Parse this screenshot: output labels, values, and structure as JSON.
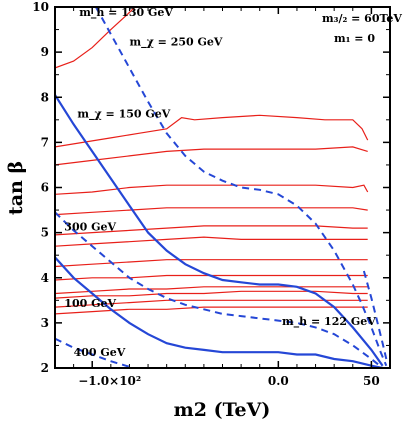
{
  "chart_data": {
    "type": "line",
    "xlabel": "m2 (TeV)",
    "ylabel": "tan β",
    "xlim": [
      -120,
      60
    ],
    "ylim": [
      2,
      10
    ],
    "x_ticks": [
      {
        "value": -100,
        "label": "−1.0×10²"
      },
      {
        "value": 0,
        "label": "0.0"
      },
      {
        "value": 50,
        "label": "50"
      }
    ],
    "y_ticks": [
      {
        "value": 2,
        "label": "2"
      },
      {
        "value": 3,
        "label": "3"
      },
      {
        "value": 4,
        "label": "4"
      },
      {
        "value": 5,
        "label": "5"
      },
      {
        "value": 6,
        "label": "6"
      },
      {
        "value": 7,
        "label": "7"
      },
      {
        "value": 8,
        "label": "8"
      },
      {
        "value": 9,
        "label": "9"
      },
      {
        "value": 10,
        "label": "10"
      }
    ],
    "legend_text": {
      "m32": "m₃/₂ = 60TeV",
      "m1": "m₁ = 0"
    },
    "annotations": [
      {
        "label": "m_h = 130 GeV",
        "x": -107,
        "y": 9.8
      },
      {
        "label": "m_χ = 250 GeV",
        "x": -80,
        "y": 9.15
      },
      {
        "label": "m_χ = 150 GeV",
        "x": -108,
        "y": 7.55
      },
      {
        "label": "300 GeV",
        "x": -115,
        "y": 5.05
      },
      {
        "label": "100 GeV",
        "x": -115,
        "y": 3.35
      },
      {
        "label": "m_h = 122 GeV",
        "x": 2,
        "y": 2.95
      },
      {
        "label": "400 GeV",
        "x": -110,
        "y": 2.27
      }
    ],
    "series": [
      {
        "style": "red-solid",
        "points": [
          [
            -120,
            8.65
          ],
          [
            -110,
            8.8
          ],
          [
            -100,
            9.1
          ],
          [
            -90,
            9.5
          ],
          [
            -82,
            9.8
          ],
          [
            -77,
            10
          ]
        ]
      },
      {
        "style": "red-solid",
        "points": [
          [
            -120,
            6.9
          ],
          [
            -105,
            7.0
          ],
          [
            -90,
            7.1
          ],
          [
            -75,
            7.2
          ],
          [
            -60,
            7.3
          ],
          [
            -52,
            7.55
          ],
          [
            -45,
            7.5
          ],
          [
            -30,
            7.55
          ],
          [
            -10,
            7.6
          ],
          [
            10,
            7.55
          ],
          [
            25,
            7.5
          ],
          [
            40,
            7.5
          ],
          [
            45,
            7.3
          ],
          [
            48,
            7.05
          ]
        ]
      },
      {
        "style": "red-solid",
        "points": [
          [
            -120,
            6.5
          ],
          [
            -100,
            6.6
          ],
          [
            -80,
            6.7
          ],
          [
            -60,
            6.8
          ],
          [
            -40,
            6.85
          ],
          [
            -20,
            6.85
          ],
          [
            0,
            6.85
          ],
          [
            20,
            6.85
          ],
          [
            40,
            6.9
          ],
          [
            48,
            6.8
          ]
        ]
      },
      {
        "style": "red-solid",
        "points": [
          [
            -120,
            5.85
          ],
          [
            -100,
            5.9
          ],
          [
            -80,
            6.0
          ],
          [
            -60,
            6.05
          ],
          [
            -40,
            6.05
          ],
          [
            -20,
            6.05
          ],
          [
            0,
            6.05
          ],
          [
            20,
            6.05
          ],
          [
            40,
            6.0
          ],
          [
            46,
            6.05
          ],
          [
            48,
            5.9
          ]
        ]
      },
      {
        "style": "red-solid",
        "points": [
          [
            -120,
            5.4
          ],
          [
            -100,
            5.45
          ],
          [
            -80,
            5.5
          ],
          [
            -60,
            5.55
          ],
          [
            -40,
            5.55
          ],
          [
            -20,
            5.55
          ],
          [
            0,
            5.55
          ],
          [
            20,
            5.55
          ],
          [
            40,
            5.55
          ],
          [
            48,
            5.5
          ]
        ]
      },
      {
        "style": "red-solid",
        "points": [
          [
            -120,
            4.95
          ],
          [
            -100,
            5.0
          ],
          [
            -80,
            5.05
          ],
          [
            -60,
            5.1
          ],
          [
            -40,
            5.15
          ],
          [
            -20,
            5.15
          ],
          [
            0,
            5.15
          ],
          [
            20,
            5.15
          ],
          [
            40,
            5.1
          ],
          [
            48,
            5.1
          ]
        ]
      },
      {
        "style": "red-solid",
        "points": [
          [
            -120,
            4.7
          ],
          [
            -100,
            4.75
          ],
          [
            -80,
            4.8
          ],
          [
            -60,
            4.85
          ],
          [
            -40,
            4.9
          ],
          [
            -20,
            4.85
          ],
          [
            0,
            4.85
          ],
          [
            20,
            4.85
          ],
          [
            40,
            4.85
          ],
          [
            48,
            4.85
          ]
        ]
      },
      {
        "style": "red-solid",
        "points": [
          [
            -120,
            4.25
          ],
          [
            -100,
            4.3
          ],
          [
            -80,
            4.35
          ],
          [
            -60,
            4.4
          ],
          [
            -40,
            4.4
          ],
          [
            -20,
            4.4
          ],
          [
            0,
            4.4
          ],
          [
            20,
            4.4
          ],
          [
            40,
            4.4
          ],
          [
            48,
            4.4
          ]
        ]
      },
      {
        "style": "red-solid",
        "points": [
          [
            -120,
            3.95
          ],
          [
            -100,
            4.0
          ],
          [
            -80,
            4.0
          ],
          [
            -60,
            4.05
          ],
          [
            -40,
            4.05
          ],
          [
            -20,
            4.05
          ],
          [
            0,
            4.05
          ],
          [
            20,
            4.05
          ],
          [
            40,
            4.05
          ],
          [
            48,
            4.05
          ]
        ]
      },
      {
        "style": "red-solid",
        "points": [
          [
            -120,
            3.65
          ],
          [
            -100,
            3.7
          ],
          [
            -80,
            3.75
          ],
          [
            -60,
            3.75
          ],
          [
            -40,
            3.8
          ],
          [
            -20,
            3.8
          ],
          [
            0,
            3.8
          ],
          [
            20,
            3.8
          ],
          [
            40,
            3.8
          ],
          [
            48,
            3.8
          ]
        ]
      },
      {
        "style": "red-solid",
        "points": [
          [
            -120,
            3.55
          ],
          [
            -100,
            3.6
          ],
          [
            -80,
            3.6
          ],
          [
            -60,
            3.65
          ],
          [
            -40,
            3.65
          ],
          [
            -20,
            3.7
          ],
          [
            0,
            3.7
          ],
          [
            20,
            3.7
          ],
          [
            40,
            3.65
          ],
          [
            48,
            3.65
          ]
        ]
      },
      {
        "style": "red-solid",
        "points": [
          [
            -120,
            3.35
          ],
          [
            -100,
            3.4
          ],
          [
            -80,
            3.45
          ],
          [
            -60,
            3.5
          ],
          [
            -40,
            3.5
          ],
          [
            -20,
            3.5
          ],
          [
            0,
            3.5
          ],
          [
            20,
            3.5
          ],
          [
            40,
            3.5
          ],
          [
            48,
            3.5
          ]
        ]
      },
      {
        "style": "red-solid",
        "points": [
          [
            -120,
            3.2
          ],
          [
            -100,
            3.25
          ],
          [
            -80,
            3.3
          ],
          [
            -60,
            3.3
          ],
          [
            -40,
            3.35
          ],
          [
            -20,
            3.35
          ],
          [
            0,
            3.35
          ],
          [
            20,
            3.35
          ],
          [
            40,
            3.35
          ],
          [
            48,
            3.35
          ]
        ]
      },
      {
        "style": "blue-solid",
        "points": [
          [
            -120,
            8.05
          ],
          [
            -110,
            7.4
          ],
          [
            -100,
            6.8
          ],
          [
            -90,
            6.2
          ],
          [
            -80,
            5.6
          ],
          [
            -70,
            5.0
          ],
          [
            -60,
            4.6
          ],
          [
            -50,
            4.3
          ],
          [
            -40,
            4.1
          ],
          [
            -30,
            3.95
          ],
          [
            -20,
            3.9
          ],
          [
            -10,
            3.85
          ],
          [
            0,
            3.85
          ],
          [
            10,
            3.8
          ],
          [
            20,
            3.65
          ],
          [
            30,
            3.35
          ],
          [
            40,
            2.9
          ],
          [
            50,
            2.4
          ],
          [
            56,
            2.05
          ]
        ]
      },
      {
        "style": "blue-solid",
        "points": [
          [
            -120,
            4.45
          ],
          [
            -110,
            4.0
          ],
          [
            -100,
            3.65
          ],
          [
            -90,
            3.3
          ],
          [
            -80,
            3.0
          ],
          [
            -70,
            2.75
          ],
          [
            -60,
            2.55
          ],
          [
            -50,
            2.45
          ],
          [
            -40,
            2.4
          ],
          [
            -30,
            2.35
          ],
          [
            -20,
            2.35
          ],
          [
            -10,
            2.35
          ],
          [
            0,
            2.35
          ],
          [
            10,
            2.3
          ],
          [
            20,
            2.3
          ],
          [
            30,
            2.2
          ],
          [
            40,
            2.15
          ],
          [
            50,
            2.05
          ],
          [
            56,
            2.0
          ]
        ]
      },
      {
        "style": "blue-dashed",
        "points": [
          [
            -98,
            10
          ],
          [
            -90,
            9.4
          ],
          [
            -80,
            8.65
          ],
          [
            -70,
            7.9
          ],
          [
            -60,
            7.2
          ],
          [
            -50,
            6.7
          ],
          [
            -40,
            6.35
          ],
          [
            -30,
            6.15
          ],
          [
            -20,
            6.0
          ],
          [
            -10,
            5.95
          ],
          [
            0,
            5.85
          ],
          [
            10,
            5.6
          ],
          [
            20,
            5.2
          ],
          [
            30,
            4.6
          ],
          [
            40,
            3.85
          ],
          [
            45,
            3.4
          ],
          [
            50,
            2.9
          ],
          [
            55,
            2.35
          ],
          [
            58,
            2.05
          ]
        ]
      },
      {
        "style": "blue-dashed",
        "points": [
          [
            -120,
            5.45
          ],
          [
            -110,
            5.05
          ],
          [
            -100,
            4.7
          ],
          [
            -90,
            4.35
          ],
          [
            -80,
            4.0
          ],
          [
            -70,
            3.75
          ],
          [
            -60,
            3.55
          ],
          [
            -50,
            3.4
          ],
          [
            -40,
            3.3
          ],
          [
            -30,
            3.2
          ],
          [
            -20,
            3.15
          ],
          [
            -10,
            3.1
          ],
          [
            0,
            3.05
          ],
          [
            10,
            3.0
          ],
          [
            20,
            2.9
          ],
          [
            30,
            2.75
          ],
          [
            40,
            2.5
          ],
          [
            50,
            2.2
          ],
          [
            56,
            2.0
          ]
        ]
      },
      {
        "style": "blue-dashed",
        "points": [
          [
            -120,
            2.65
          ],
          [
            -110,
            2.45
          ],
          [
            -100,
            2.3
          ],
          [
            -90,
            2.15
          ],
          [
            -82,
            2.05
          ],
          [
            -78,
            2.0
          ]
        ]
      },
      {
        "style": "blue-dashed",
        "points": [
          [
            46,
            4.15
          ],
          [
            50,
            3.55
          ],
          [
            53,
            3.05
          ],
          [
            56,
            2.55
          ],
          [
            58,
            2.2
          ]
        ]
      }
    ]
  }
}
